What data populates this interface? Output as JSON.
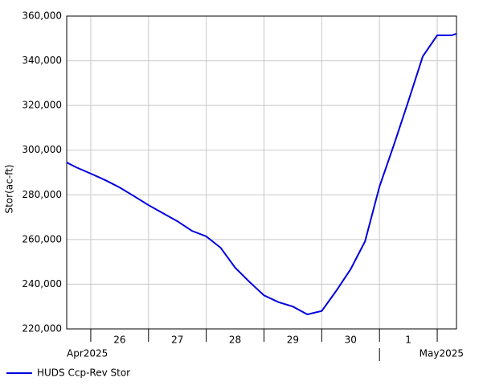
{
  "chart_data": {
    "type": "line",
    "y_label": "Stor(ac-ft)",
    "x": [
      "2025-04-25T14:00",
      "2025-04-25T18:00",
      "2025-04-26T00:00",
      "2025-04-26T06:00",
      "2025-04-26T12:00",
      "2025-04-26T18:00",
      "2025-04-27T00:00",
      "2025-04-27T06:00",
      "2025-04-27T12:00",
      "2025-04-27T18:00",
      "2025-04-28T00:00",
      "2025-04-28T06:00",
      "2025-04-28T12:00",
      "2025-04-28T18:00",
      "2025-04-29T00:00",
      "2025-04-29T06:00",
      "2025-04-29T12:00",
      "2025-04-29T18:00",
      "2025-04-30T00:00",
      "2025-04-30T06:00",
      "2025-04-30T12:00",
      "2025-04-30T18:00",
      "2025-05-01T00:00",
      "2025-05-01T06:00",
      "2025-05-01T12:00",
      "2025-05-01T18:00",
      "2025-05-02T00:00",
      "2025-05-02T06:00",
      "2025-05-02T08:00"
    ],
    "series": [
      {
        "name": "HUDS Ccp-Rev Stor",
        "color": "#0000dd",
        "values": [
          294500,
          292300,
          289500,
          286600,
          283300,
          279400,
          275400,
          271800,
          268200,
          263900,
          261400,
          256300,
          247400,
          241000,
          235000,
          232000,
          230000,
          226500,
          228000,
          237000,
          246700,
          259200,
          283700,
          302400,
          321900,
          342000,
          351400,
          351400,
          352100
        ]
      }
    ],
    "xlim": [
      "2025-04-25T14:00",
      "2025-05-02T08:00"
    ],
    "xticks": [
      {
        "value": "2025-04-26T00:00",
        "label": "26"
      },
      {
        "value": "2025-04-27T00:00",
        "label": "27"
      },
      {
        "value": "2025-04-28T00:00",
        "label": "28"
      },
      {
        "value": "2025-04-29T00:00",
        "label": "29"
      },
      {
        "value": "2025-04-30T00:00",
        "label": "30"
      },
      {
        "value": "2025-05-01T00:00",
        "label": "1"
      }
    ],
    "month_ticks": [
      {
        "value": "2025-04-01T00:00",
        "label": "Apr2025"
      },
      {
        "value": "2025-05-01T00:00",
        "label": "May2025"
      }
    ],
    "ylim": [
      220000,
      360000
    ],
    "yticks": [
      {
        "value": 220000,
        "label": "220,000"
      },
      {
        "value": 240000,
        "label": "240,000"
      },
      {
        "value": 260000,
        "label": "260,000"
      },
      {
        "value": 280000,
        "label": "280,000"
      },
      {
        "value": 300000,
        "label": "300,000"
      },
      {
        "value": 320000,
        "label": "320,000"
      },
      {
        "value": 340000,
        "label": "340,000"
      },
      {
        "value": 360000,
        "label": "360,000"
      }
    ],
    "grid": true
  }
}
